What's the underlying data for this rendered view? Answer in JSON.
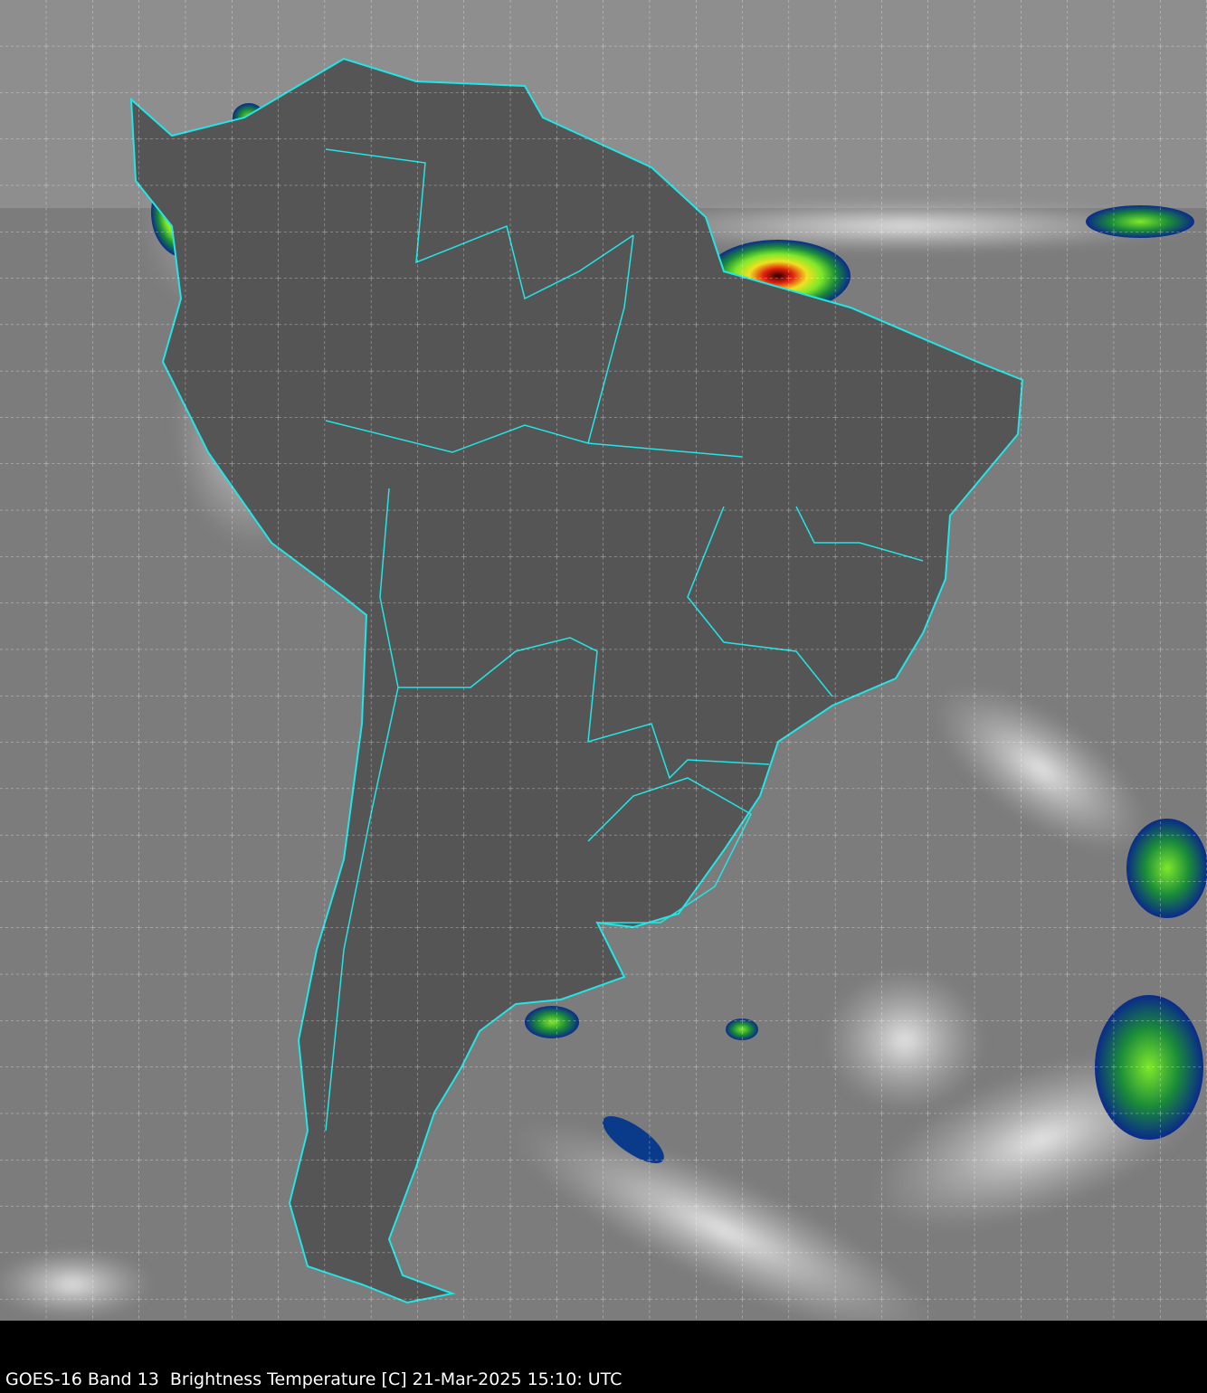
{
  "caption": "GOES-16 Band 13  Brightness Temperature [C] 21-Mar-2025 15:10: UTC",
  "colors": {
    "coastline": "#22e5e5",
    "grid": "#ffffff",
    "background_ocean": "#808080",
    "land_dark": "#4a4a4a",
    "cloud_cold": "#ffffff",
    "deep_convection_scale": [
      "#0a2a8a",
      "#1a8a3a",
      "#7ee82a",
      "#f0e020",
      "#e02010",
      "#300000"
    ]
  },
  "map": {
    "region": "South America",
    "gridlines": true,
    "overlay": "country and state boundaries"
  }
}
